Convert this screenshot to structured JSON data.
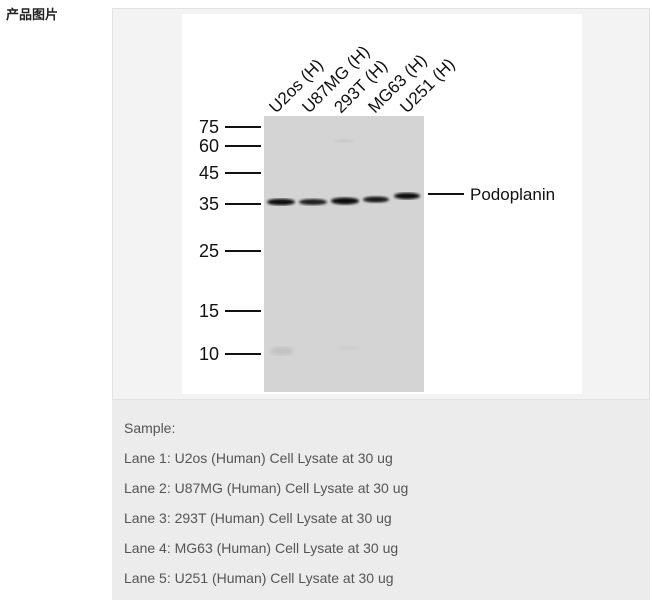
{
  "section": {
    "title": "产品图片"
  },
  "blot": {
    "lanes": [
      "U2os (H)",
      "U87MG (H)",
      "293T (H)",
      "MG63 (H)",
      "U251 (H)"
    ],
    "markers": [
      "75",
      "60",
      "45",
      "35",
      "25",
      "15",
      "10"
    ],
    "band_label": "Podoplanin"
  },
  "caption": {
    "heading": "Sample:",
    "lines": [
      "Lane 1: U2os (Human) Cell Lysate at 30 ug",
      "Lane 2: U87MG (Human) Cell Lysate at 30 ug",
      "Lane 3: 293T (Human) Cell Lysate at 30 ug",
      "Lane 4: MG63 (Human) Cell Lysate at 30 ug",
      "Lane 5: U251 (Human) Cell Lysate at 30 ug"
    ]
  }
}
